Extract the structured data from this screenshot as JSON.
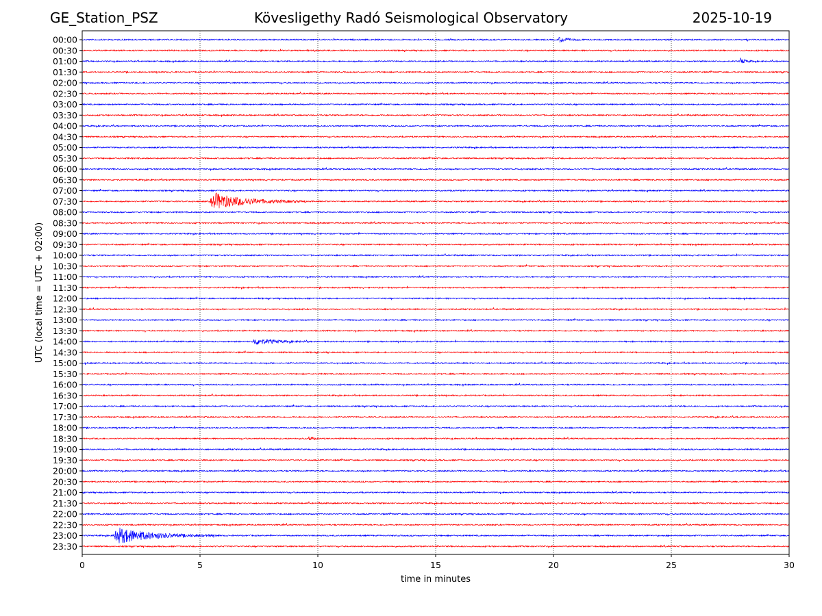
{
  "header": {
    "station": "GE_Station_PSZ",
    "title": "Kövesligethy Radó Seismological Observatory",
    "date": "2025-10-19"
  },
  "chart_data": {
    "type": "line",
    "title": "Kövesligethy Radó Seismological Observatory",
    "xlabel": "time in minutes",
    "ylabel": "UTC (local time = UTC + 02:00)",
    "xlim": [
      0,
      30
    ],
    "xticks": [
      0,
      5,
      10,
      15,
      20,
      25,
      30
    ],
    "grid": "vertical dotted lines at 5, 10, 15, 20, 25",
    "trace_colors": [
      "#0000ff",
      "#ff0000"
    ],
    "rows": [
      "00:00",
      "00:30",
      "01:00",
      "01:30",
      "02:00",
      "02:30",
      "03:00",
      "03:30",
      "04:00",
      "04:30",
      "05:00",
      "05:30",
      "06:00",
      "06:30",
      "07:00",
      "07:30",
      "08:00",
      "08:30",
      "09:00",
      "09:30",
      "10:00",
      "10:30",
      "11:00",
      "11:30",
      "12:00",
      "12:30",
      "13:00",
      "13:30",
      "14:00",
      "14:30",
      "15:00",
      "15:30",
      "16:00",
      "16:30",
      "17:00",
      "17:30",
      "18:00",
      "18:30",
      "19:00",
      "19:30",
      "20:00",
      "20:30",
      "21:00",
      "21:30",
      "22:00",
      "22:30",
      "23:00",
      "23:30"
    ],
    "events": [
      {
        "row": "00:00",
        "start": 20.2,
        "end": 21.2,
        "amplitude": 0.25
      },
      {
        "row": "01:00",
        "start": 27.9,
        "end": 28.5,
        "amplitude": 0.3
      },
      {
        "row": "07:30",
        "start": 5.4,
        "end": 9.5,
        "amplitude": 0.8
      },
      {
        "row": "14:00",
        "start": 7.2,
        "end": 9.8,
        "amplitude": 0.3
      },
      {
        "row": "18:30",
        "start": 9.6,
        "end": 10.1,
        "amplitude": 0.2
      },
      {
        "row": "23:00",
        "start": 1.3,
        "end": 5.8,
        "amplitude": 0.75
      }
    ]
  }
}
